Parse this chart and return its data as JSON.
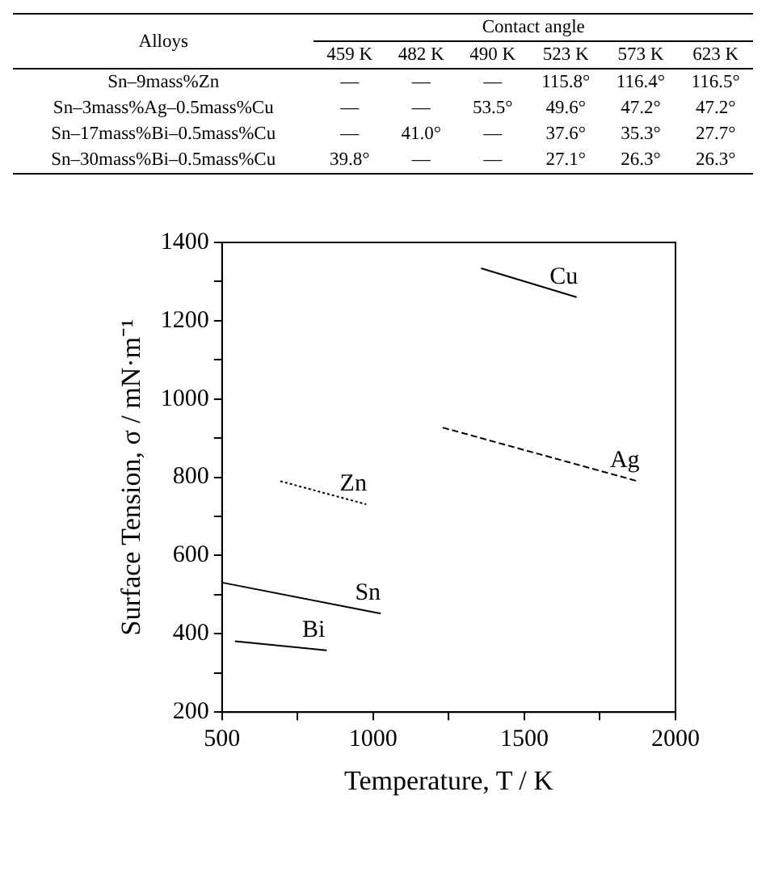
{
  "chart_data": [
    {
      "type": "other",
      "title": "Contact angle",
      "ylabel": "Alloys",
      "categories": [
        "459 K",
        "482 K",
        "490 K",
        "523 K",
        "573 K",
        "623 K"
      ],
      "y_categories": [
        "Sn–9mass%Zn",
        "Sn–3mass%Ag–0.5mass%Cu",
        "Sn–17mass%Bi–0.5mass%Cu",
        "Sn–30mass%Bi–0.5mass%Cu"
      ],
      "cell_labels": [
        [
          "—",
          "—",
          "—",
          "115.8°",
          "116.4°",
          "116.5°"
        ],
        [
          "—",
          "—",
          "53.5°",
          "49.6°",
          "47.2°",
          "47.2°"
        ],
        [
          "—",
          "41.0°",
          "—",
          "37.6°",
          "35.3°",
          "27.7°"
        ],
        [
          "39.8°",
          "—",
          "—",
          "27.1°",
          "26.3°",
          "26.3°"
        ]
      ]
    },
    {
      "type": "line",
      "xlabel": "Temperature, T / K",
      "ylabel": "Surface Tension, σ / mN·m⁻¹",
      "xlim": [
        500,
        2000
      ],
      "xticks": [
        500,
        {
          "value": 750,
          "label": null
        },
        1000,
        {
          "value": 1250,
          "label": null
        },
        1500,
        {
          "value": 1750,
          "label": null
        },
        2000
      ],
      "ylim": [
        200,
        1400
      ],
      "yticks": [
        200,
        {
          "value": 300,
          "label": null
        },
        400,
        {
          "value": 500,
          "label": null
        },
        600,
        {
          "value": 700,
          "label": null
        },
        800,
        {
          "value": 900,
          "label": null
        },
        1000,
        {
          "value": 1100,
          "label": null
        },
        1200,
        {
          "value": 1300,
          "label": null
        },
        1400
      ],
      "grid": false,
      "legend": false,
      "marker": "none",
      "series": [
        {
          "name": "Cu",
          "color": "#000000",
          "line_style": "solid",
          "x": [
            1357,
            1673
          ],
          "values": [
            1334,
            1260
          ]
        },
        {
          "name": "Ag",
          "color": "#000000",
          "line_style": "dashed",
          "x": [
            1230,
            1875
          ],
          "values": [
            927,
            790
          ]
        },
        {
          "name": "Zn",
          "color": "#000000",
          "line_style": "dotted",
          "x": [
            693,
            977
          ],
          "values": [
            790,
            731
          ]
        },
        {
          "name": "Sn",
          "color": "#000000",
          "line_style": "solid",
          "x": [
            500,
            1025
          ],
          "values": [
            531,
            452
          ]
        },
        {
          "name": "Bi",
          "color": "#000000",
          "line_style": "solid",
          "x": [
            543,
            846
          ],
          "values": [
            381,
            358
          ]
        }
      ]
    }
  ]
}
